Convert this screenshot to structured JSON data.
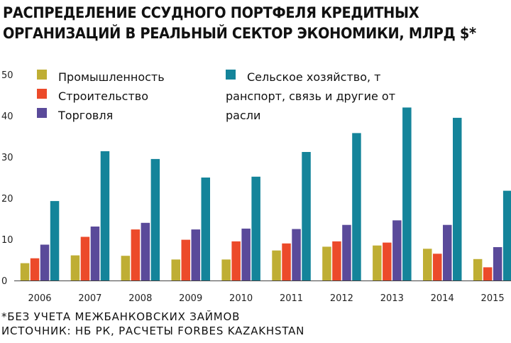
{
  "title_line1": "РАСПРЕДЕЛЕНИЕ ССУДНОГО ПОРТФЕЛЯ КРЕДИТНЫХ",
  "title_line2": "ОРГАНИЗАЦИЙ В РЕАЛЬНЫЙ СЕКТОР ЭКОНОМИКИ, МЛРД $*",
  "footnote": "*БЕЗ УЧЕТА МЕЖБАНКОВСКИХ ЗАЙМОВ",
  "source": "ИСТОЧНИК: НБ РК, РАСЧЕТЫ FORBES KAZAKHSTAN",
  "chart_data": {
    "type": "bar",
    "categories": [
      "2006",
      "2007",
      "2008",
      "2009",
      "2010",
      "2011",
      "2012",
      "2013",
      "2014",
      "2015"
    ],
    "series": [
      {
        "name": "Промышленность",
        "color": "#bfae34",
        "values": [
          4.2,
          6.1,
          6.0,
          5.1,
          5.1,
          7.3,
          8.2,
          8.5,
          7.7,
          5.2
        ]
      },
      {
        "name": "Строительство",
        "color": "#ec4a2a",
        "values": [
          5.4,
          10.6,
          12.4,
          9.9,
          9.5,
          9.0,
          9.5,
          9.2,
          6.5,
          3.2
        ]
      },
      {
        "name": "Торговля",
        "color": "#5a4a9a",
        "values": [
          8.7,
          13.1,
          14.0,
          12.4,
          12.6,
          12.5,
          13.5,
          14.6,
          13.5,
          8.1
        ]
      },
      {
        "name": "Сельское хозяйство, транспорт, связь и другие отрасли",
        "color": "#14849a",
        "values": [
          19.3,
          31.4,
          29.5,
          25.0,
          25.2,
          31.2,
          35.8,
          42.0,
          39.5,
          21.8
        ]
      }
    ],
    "yticks": [
      0,
      10,
      20,
      30,
      40,
      50
    ],
    "ylim": [
      0,
      50
    ],
    "grid": false,
    "legend_position": "top-left"
  }
}
